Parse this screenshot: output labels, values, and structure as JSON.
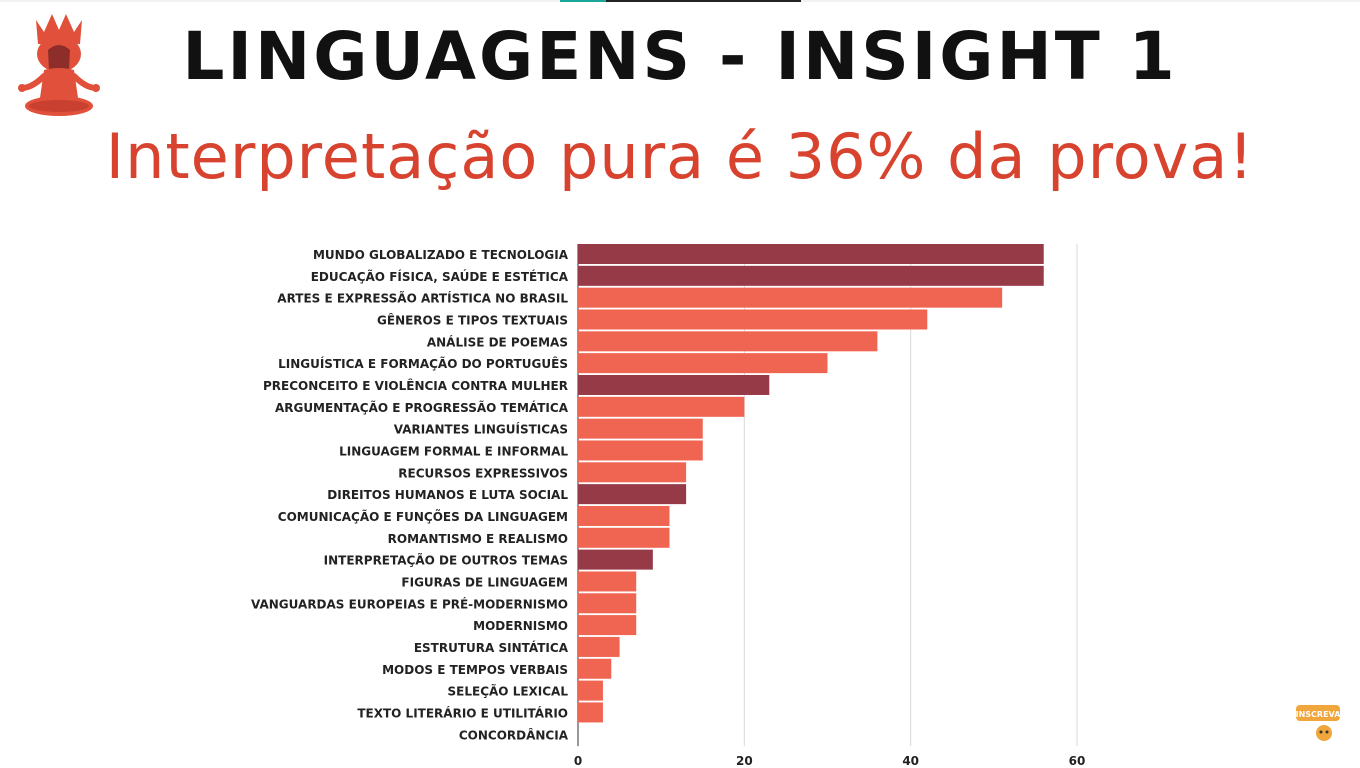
{
  "title": "LINGUAGENS - INSIGHT 1",
  "subtitle": "Interpretação pura é 36% da prova!",
  "colors": {
    "dark": "#973a47",
    "light": "#f06452",
    "title": "#111111",
    "subtitle": "#d8432f"
  },
  "logo": {
    "icon": "meditating-mascot-icon"
  },
  "badge": {
    "icon": "inscreva-badge-icon",
    "text": "INSCREVA"
  },
  "chart_data": {
    "type": "bar",
    "orientation": "horizontal",
    "title": "",
    "xlabel": "",
    "ylabel": "",
    "xlim": [
      0,
      60
    ],
    "x_ticks": [
      0,
      20,
      40,
      60
    ],
    "grid": true,
    "categories": [
      "MUNDO GLOBALIZADO E TECNOLOGIA",
      "EDUCAÇÃO FÍSICA, SAÚDE E ESTÉTICA",
      "ARTES E EXPRESSÃO ARTÍSTICA NO BRASIL",
      "GÊNEROS E TIPOS TEXTUAIS",
      "ANÁLISE DE POEMAS",
      "LINGUÍSTICA E FORMAÇÃO DO PORTUGUÊS",
      "PRECONCEITO E VIOLÊNCIA CONTRA MULHER",
      "ARGUMENTAÇÃO E PROGRESSÃO TEMÁTICA",
      "VARIANTES LINGUÍSTICAS",
      "LINGUAGEM FORMAL E INFORMAL",
      "RECURSOS EXPRESSIVOS",
      "DIREITOS HUMANOS E LUTA SOCIAL",
      "COMUNICAÇÃO E FUNÇÕES DA LINGUAGEM",
      "ROMANTISMO E REALISMO",
      "INTERPRETAÇÃO DE OUTROS TEMAS",
      "FIGURAS DE LINGUAGEM",
      "VANGUARDAS EUROPEIAS E PRÉ-MODERNISMO",
      "MODERNISMO",
      "ESTRUTURA SINTÁTICA",
      "MODOS E TEMPOS VERBAIS",
      "SELEÇÃO LEXICAL",
      "TEXTO LITERÁRIO E UTILITÁRIO",
      "CONCORDÂNCIA"
    ],
    "values": [
      56,
      56,
      51,
      42,
      36,
      30,
      23,
      20,
      15,
      15,
      13,
      13,
      11,
      11,
      9,
      7,
      7,
      7,
      5,
      4,
      3,
      3,
      0
    ],
    "highlight": [
      true,
      true,
      false,
      false,
      false,
      false,
      true,
      false,
      false,
      false,
      false,
      true,
      false,
      false,
      true,
      false,
      false,
      false,
      false,
      false,
      false,
      false,
      false
    ]
  }
}
